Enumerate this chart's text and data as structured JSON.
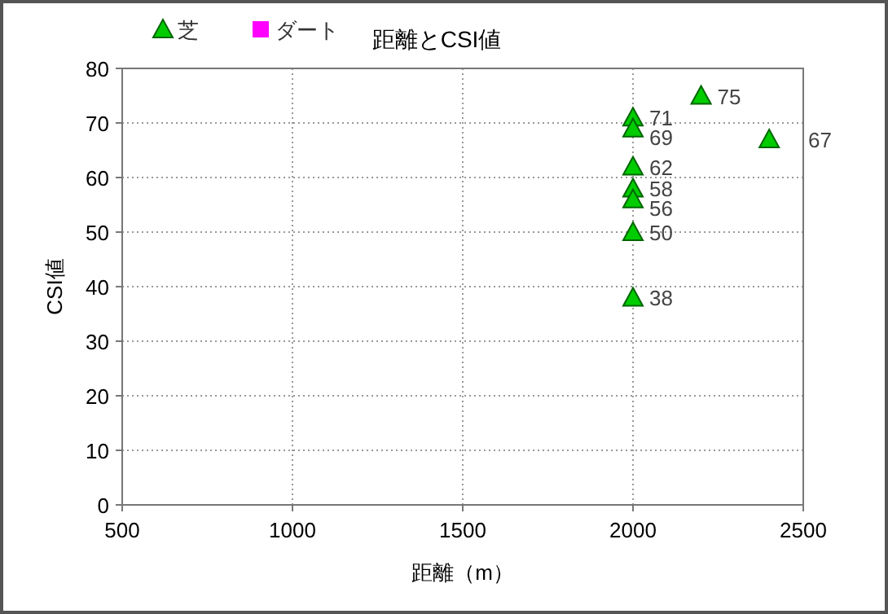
{
  "chart_data": {
    "type": "scatter",
    "title": "距離とCSI値",
    "xlabel": "距離（m）",
    "ylabel": "CSI値",
    "xlim": [
      500,
      2500
    ],
    "xticks": [
      500,
      1000,
      1500,
      2000,
      2500
    ],
    "ylim": [
      0,
      80
    ],
    "yticks": [
      0,
      10,
      20,
      30,
      40,
      50,
      60,
      70,
      80
    ],
    "grid": true,
    "legend": "top left",
    "data_labels": true,
    "series": [
      {
        "name": "芝",
        "color": "#00cc00",
        "marker": "triangle",
        "x": [
          2000,
          2000,
          2000,
          2000,
          2000,
          2000,
          2000,
          2200,
          2400
        ],
        "values": [
          71,
          69,
          62,
          58,
          56,
          50,
          38,
          75,
          67
        ]
      },
      {
        "name": "ダート",
        "color": "#ff00ff",
        "marker": "square"
      }
    ]
  }
}
